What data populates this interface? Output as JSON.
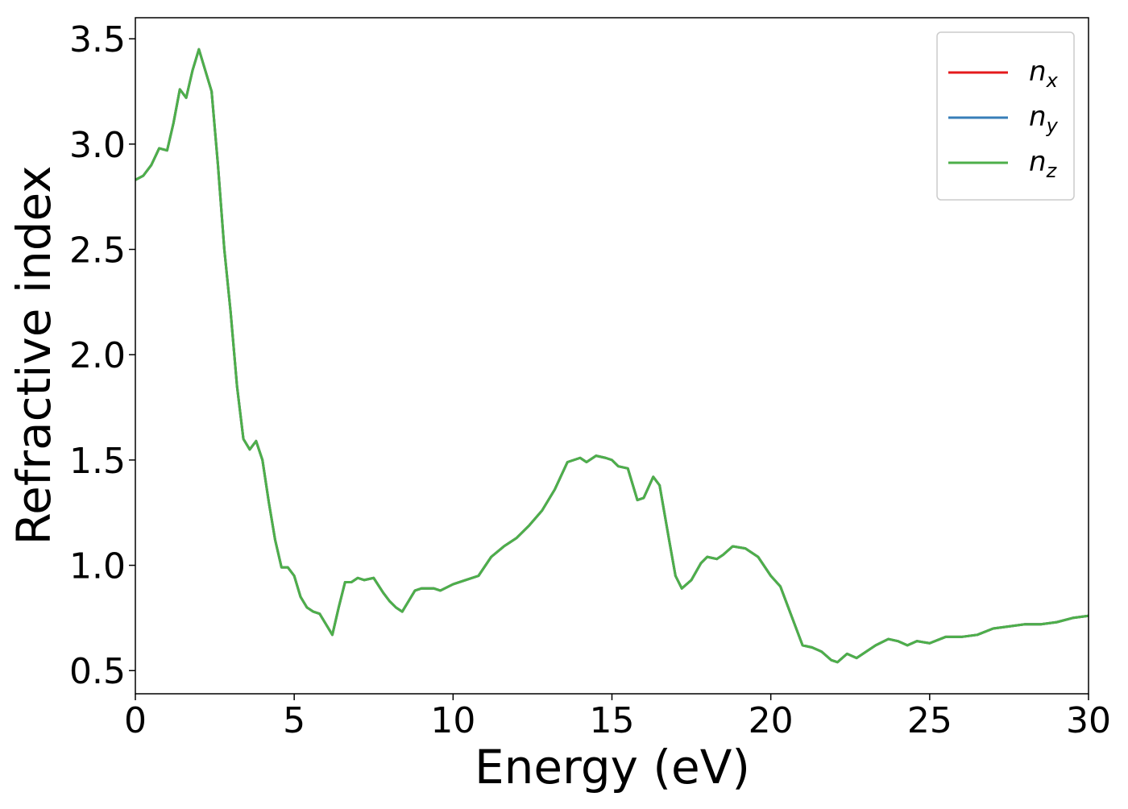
{
  "chart_data": {
    "type": "line",
    "xlabel": "Energy (eV)",
    "ylabel": "Refractive index",
    "x": [
      0,
      0.25,
      0.5,
      0.75,
      1.0,
      1.2,
      1.4,
      1.6,
      1.8,
      2.0,
      2.2,
      2.4,
      2.6,
      2.8,
      3.0,
      3.2,
      3.4,
      3.6,
      3.8,
      4.0,
      4.2,
      4.4,
      4.6,
      4.8,
      5.0,
      5.2,
      5.4,
      5.6,
      5.8,
      6.0,
      6.2,
      6.4,
      6.6,
      6.8,
      7.0,
      7.2,
      7.5,
      7.8,
      8.0,
      8.2,
      8.4,
      8.6,
      8.8,
      9.0,
      9.4,
      9.6,
      10.0,
      10.4,
      10.8,
      11.2,
      11.6,
      12.0,
      12.4,
      12.8,
      13.2,
      13.6,
      14.0,
      14.2,
      14.5,
      14.8,
      15.0,
      15.2,
      15.5,
      15.8,
      16.0,
      16.3,
      16.5,
      16.8,
      17.0,
      17.2,
      17.5,
      17.8,
      18.0,
      18.3,
      18.5,
      18.8,
      19.2,
      19.6,
      20.0,
      20.3,
      20.6,
      21.0,
      21.3,
      21.6,
      21.9,
      22.1,
      22.4,
      22.7,
      23.0,
      23.3,
      23.7,
      24.0,
      24.3,
      24.6,
      25.0,
      25.5,
      26.0,
      26.5,
      27.0,
      27.5,
      28.0,
      28.5,
      29.0,
      29.5,
      30.0
    ],
    "series": [
      {
        "name": "nx",
        "color": "#e41a1c",
        "values": [
          2.83,
          2.85,
          2.9,
          2.98,
          2.97,
          3.1,
          3.26,
          3.22,
          3.35,
          3.45,
          3.35,
          3.25,
          2.9,
          2.5,
          2.2,
          1.85,
          1.6,
          1.55,
          1.59,
          1.5,
          1.3,
          1.12,
          0.99,
          0.99,
          0.95,
          0.85,
          0.8,
          0.78,
          0.77,
          0.72,
          0.67,
          0.8,
          0.92,
          0.92,
          0.94,
          0.93,
          0.94,
          0.87,
          0.83,
          0.8,
          0.78,
          0.83,
          0.88,
          0.89,
          0.89,
          0.88,
          0.91,
          0.93,
          0.95,
          1.04,
          1.09,
          1.13,
          1.19,
          1.26,
          1.36,
          1.49,
          1.51,
          1.49,
          1.52,
          1.51,
          1.5,
          1.47,
          1.46,
          1.31,
          1.32,
          1.42,
          1.38,
          1.12,
          0.95,
          0.89,
          0.93,
          1.01,
          1.04,
          1.03,
          1.05,
          1.09,
          1.08,
          1.04,
          0.95,
          0.9,
          0.78,
          0.62,
          0.61,
          0.59,
          0.55,
          0.54,
          0.58,
          0.56,
          0.59,
          0.62,
          0.65,
          0.64,
          0.62,
          0.64,
          0.63,
          0.66,
          0.66,
          0.67,
          0.7,
          0.71,
          0.72,
          0.72,
          0.73,
          0.75,
          0.76
        ]
      },
      {
        "name": "ny",
        "color": "#377eb8",
        "values": [
          2.83,
          2.85,
          2.9,
          2.98,
          2.97,
          3.1,
          3.26,
          3.22,
          3.35,
          3.45,
          3.35,
          3.25,
          2.9,
          2.5,
          2.2,
          1.85,
          1.6,
          1.55,
          1.59,
          1.5,
          1.3,
          1.12,
          0.99,
          0.99,
          0.95,
          0.85,
          0.8,
          0.78,
          0.77,
          0.72,
          0.67,
          0.8,
          0.92,
          0.92,
          0.94,
          0.93,
          0.94,
          0.87,
          0.83,
          0.8,
          0.78,
          0.83,
          0.88,
          0.89,
          0.89,
          0.88,
          0.91,
          0.93,
          0.95,
          1.04,
          1.09,
          1.13,
          1.19,
          1.26,
          1.36,
          1.49,
          1.51,
          1.49,
          1.52,
          1.51,
          1.5,
          1.47,
          1.46,
          1.31,
          1.32,
          1.42,
          1.38,
          1.12,
          0.95,
          0.89,
          0.93,
          1.01,
          1.04,
          1.03,
          1.05,
          1.09,
          1.08,
          1.04,
          0.95,
          0.9,
          0.78,
          0.62,
          0.61,
          0.59,
          0.55,
          0.54,
          0.58,
          0.56,
          0.59,
          0.62,
          0.65,
          0.64,
          0.62,
          0.64,
          0.63,
          0.66,
          0.66,
          0.67,
          0.7,
          0.71,
          0.72,
          0.72,
          0.73,
          0.75,
          0.76
        ]
      },
      {
        "name": "nz",
        "color": "#4daf4a",
        "values": [
          2.83,
          2.85,
          2.9,
          2.98,
          2.97,
          3.1,
          3.26,
          3.22,
          3.35,
          3.45,
          3.35,
          3.25,
          2.9,
          2.5,
          2.2,
          1.85,
          1.6,
          1.55,
          1.59,
          1.5,
          1.3,
          1.12,
          0.99,
          0.99,
          0.95,
          0.85,
          0.8,
          0.78,
          0.77,
          0.72,
          0.67,
          0.8,
          0.92,
          0.92,
          0.94,
          0.93,
          0.94,
          0.87,
          0.83,
          0.8,
          0.78,
          0.83,
          0.88,
          0.89,
          0.89,
          0.88,
          0.91,
          0.93,
          0.95,
          1.04,
          1.09,
          1.13,
          1.19,
          1.26,
          1.36,
          1.49,
          1.51,
          1.49,
          1.52,
          1.51,
          1.5,
          1.47,
          1.46,
          1.31,
          1.32,
          1.42,
          1.38,
          1.12,
          0.95,
          0.89,
          0.93,
          1.01,
          1.04,
          1.03,
          1.05,
          1.09,
          1.08,
          1.04,
          0.95,
          0.9,
          0.78,
          0.62,
          0.61,
          0.59,
          0.55,
          0.54,
          0.58,
          0.56,
          0.59,
          0.62,
          0.65,
          0.64,
          0.62,
          0.64,
          0.63,
          0.66,
          0.66,
          0.67,
          0.7,
          0.71,
          0.72,
          0.72,
          0.73,
          0.75,
          0.76
        ]
      }
    ],
    "xlim": [
      0,
      30
    ],
    "xticks": [
      0,
      5,
      10,
      15,
      20,
      25,
      30
    ],
    "ylim": [
      0.39,
      3.6
    ],
    "yticks": [
      0.5,
      1.0,
      1.5,
      2.0,
      2.5,
      3.0,
      3.5
    ],
    "grid": false,
    "legend": "upper right"
  }
}
